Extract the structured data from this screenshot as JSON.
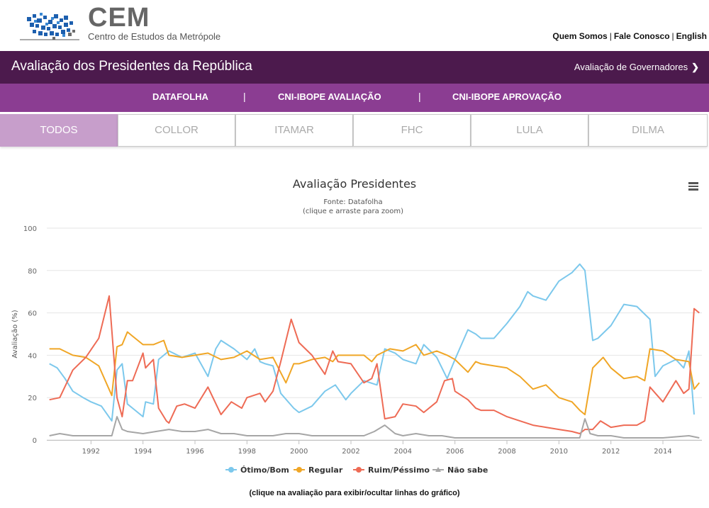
{
  "brand": {
    "name": "CEM",
    "subtitle": "Centro de Estudos da Metrópole"
  },
  "top_links": [
    "Quem Somos",
    "Fale Conosco",
    "English"
  ],
  "titlebar": {
    "title": "Avaliação dos Presidentes da República",
    "governors_link": "Avaliação de Governadores"
  },
  "source_nav": [
    "DATAFOLHA",
    "CNI-IBOPE AVALIAÇÃO",
    "CNI-IBOPE APROVAÇÃO"
  ],
  "tabs": [
    {
      "label": "TODOS",
      "active": true
    },
    {
      "label": "COLLOR",
      "active": false
    },
    {
      "label": "ITAMAR",
      "active": false
    },
    {
      "label": "FHC",
      "active": false
    },
    {
      "label": "LULA",
      "active": false
    },
    {
      "label": "DILMA",
      "active": false
    }
  ],
  "chart_hint": "(clique na avaliação para exibir/ocultar linhas do gráfico)",
  "colors": {
    "header_purple": "#4c1a4d",
    "nav_purple": "#8b3d92",
    "tab_active": "#c79ecb"
  },
  "chart_data": {
    "type": "line",
    "title": "Avaliação Presidentes",
    "subtitle": "Fonte: Datafolha",
    "subtitle2": "(clique e arraste para zoom)",
    "ylabel": "Avaliação (%)",
    "xlabel": "",
    "ylim": [
      0,
      100
    ],
    "yticks": [
      0,
      20,
      40,
      60,
      80,
      100
    ],
    "xlim": [
      1990.3,
      2015.5
    ],
    "xticks": [
      1992,
      1994,
      1996,
      1998,
      2000,
      2002,
      2004,
      2006,
      2008,
      2010,
      2012,
      2014
    ],
    "grid": "horizontal",
    "legend_position": "bottom",
    "series": [
      {
        "name": "Ótimo/Bom",
        "color": "#7cc8ec",
        "points": [
          [
            1990.4,
            36
          ],
          [
            1990.7,
            34
          ],
          [
            1991.0,
            29
          ],
          [
            1991.3,
            23
          ],
          [
            1991.7,
            20
          ],
          [
            1992.0,
            18
          ],
          [
            1992.4,
            16
          ],
          [
            1992.8,
            9
          ],
          [
            1993.0,
            33
          ],
          [
            1993.2,
            36
          ],
          [
            1993.4,
            17
          ],
          [
            1993.6,
            15
          ],
          [
            1994.0,
            11
          ],
          [
            1994.1,
            18
          ],
          [
            1994.4,
            17
          ],
          [
            1994.6,
            38
          ],
          [
            1994.8,
            40
          ],
          [
            1995.0,
            42
          ],
          [
            1995.5,
            39
          ],
          [
            1996.0,
            41
          ],
          [
            1996.5,
            30
          ],
          [
            1996.8,
            43
          ],
          [
            1997.0,
            47
          ],
          [
            1997.5,
            43
          ],
          [
            1998.0,
            38
          ],
          [
            1998.3,
            43
          ],
          [
            1998.5,
            37
          ],
          [
            1998.7,
            36
          ],
          [
            1999.0,
            35
          ],
          [
            1999.3,
            22
          ],
          [
            1999.8,
            15
          ],
          [
            2000.0,
            13
          ],
          [
            2000.5,
            16
          ],
          [
            2001.0,
            23
          ],
          [
            2001.4,
            26
          ],
          [
            2001.8,
            19
          ],
          [
            2002.0,
            22
          ],
          [
            2002.5,
            28
          ],
          [
            2003.0,
            26
          ],
          [
            2003.3,
            43
          ],
          [
            2003.7,
            41
          ],
          [
            2004.0,
            38
          ],
          [
            2004.5,
            36
          ],
          [
            2004.8,
            45
          ],
          [
            2005.3,
            39
          ],
          [
            2005.7,
            29
          ],
          [
            2006.0,
            38
          ],
          [
            2006.5,
            52
          ],
          [
            2006.8,
            50
          ],
          [
            2007.0,
            48
          ],
          [
            2007.5,
            48
          ],
          [
            2008.0,
            55
          ],
          [
            2008.5,
            63
          ],
          [
            2008.8,
            70
          ],
          [
            2009.0,
            68
          ],
          [
            2009.5,
            66
          ],
          [
            2010.0,
            75
          ],
          [
            2010.5,
            79
          ],
          [
            2010.8,
            83
          ],
          [
            2011.0,
            80
          ],
          [
            2011.3,
            47
          ],
          [
            2011.5,
            48
          ],
          [
            2012.0,
            54
          ],
          [
            2012.5,
            64
          ],
          [
            2013.0,
            63
          ],
          [
            2013.5,
            57
          ],
          [
            2013.7,
            30
          ],
          [
            2014.0,
            35
          ],
          [
            2014.5,
            38
          ],
          [
            2014.8,
            34
          ],
          [
            2015.0,
            42
          ],
          [
            2015.2,
            12
          ]
        ]
      },
      {
        "name": "Regular",
        "color": "#f0a626",
        "points": [
          [
            1990.4,
            43
          ],
          [
            1990.8,
            43
          ],
          [
            1991.3,
            40
          ],
          [
            1991.8,
            39
          ],
          [
            1992.3,
            35
          ],
          [
            1992.8,
            21
          ],
          [
            1993.0,
            44
          ],
          [
            1993.2,
            45
          ],
          [
            1993.4,
            51
          ],
          [
            1993.6,
            49
          ],
          [
            1994.0,
            45
          ],
          [
            1994.4,
            45
          ],
          [
            1994.8,
            47
          ],
          [
            1995.0,
            40
          ],
          [
            1995.5,
            39
          ],
          [
            1996.0,
            40
          ],
          [
            1996.5,
            41
          ],
          [
            1997.0,
            38
          ],
          [
            1997.5,
            39
          ],
          [
            1998.0,
            42
          ],
          [
            1998.5,
            38
          ],
          [
            1999.0,
            39
          ],
          [
            1999.5,
            27
          ],
          [
            1999.8,
            36
          ],
          [
            2000.0,
            36
          ],
          [
            2000.5,
            38
          ],
          [
            2001.0,
            39
          ],
          [
            2001.3,
            37
          ],
          [
            2001.5,
            40
          ],
          [
            2002.0,
            40
          ],
          [
            2002.5,
            40
          ],
          [
            2002.8,
            37
          ],
          [
            2003.0,
            40
          ],
          [
            2003.5,
            43
          ],
          [
            2004.0,
            42
          ],
          [
            2004.5,
            45
          ],
          [
            2004.8,
            40
          ],
          [
            2005.3,
            42
          ],
          [
            2005.7,
            40
          ],
          [
            2006.0,
            38
          ],
          [
            2006.5,
            32
          ],
          [
            2006.8,
            37
          ],
          [
            2007.0,
            36
          ],
          [
            2007.5,
            35
          ],
          [
            2008.0,
            34
          ],
          [
            2008.5,
            30
          ],
          [
            2009.0,
            24
          ],
          [
            2009.5,
            26
          ],
          [
            2010.0,
            20
          ],
          [
            2010.5,
            18
          ],
          [
            2010.8,
            14
          ],
          [
            2011.0,
            12
          ],
          [
            2011.3,
            34
          ],
          [
            2011.7,
            39
          ],
          [
            2012.0,
            34
          ],
          [
            2012.5,
            29
          ],
          [
            2013.0,
            30
          ],
          [
            2013.3,
            28
          ],
          [
            2013.5,
            43
          ],
          [
            2014.0,
            42
          ],
          [
            2014.5,
            38
          ],
          [
            2015.0,
            37
          ],
          [
            2015.2,
            24
          ],
          [
            2015.4,
            27
          ]
        ]
      },
      {
        "name": "Ruim/Péssimo",
        "color": "#ee6b55",
        "points": [
          [
            1990.4,
            19
          ],
          [
            1990.8,
            20
          ],
          [
            1991.3,
            33
          ],
          [
            1991.8,
            39
          ],
          [
            1992.3,
            48
          ],
          [
            1992.7,
            68
          ],
          [
            1993.0,
            20
          ],
          [
            1993.2,
            11
          ],
          [
            1993.4,
            28
          ],
          [
            1993.6,
            28
          ],
          [
            1994.0,
            41
          ],
          [
            1994.1,
            34
          ],
          [
            1994.4,
            38
          ],
          [
            1994.6,
            15
          ],
          [
            1994.9,
            9
          ],
          [
            1995.0,
            8
          ],
          [
            1995.3,
            16
          ],
          [
            1995.6,
            17
          ],
          [
            1996.0,
            15
          ],
          [
            1996.5,
            25
          ],
          [
            1997.0,
            12
          ],
          [
            1997.4,
            18
          ],
          [
            1997.8,
            15
          ],
          [
            1998.0,
            20
          ],
          [
            1998.5,
            22
          ],
          [
            1998.7,
            18
          ],
          [
            1999.0,
            23
          ],
          [
            1999.3,
            37
          ],
          [
            1999.7,
            57
          ],
          [
            2000.0,
            46
          ],
          [
            2000.5,
            40
          ],
          [
            2001.0,
            31
          ],
          [
            2001.3,
            42
          ],
          [
            2001.5,
            37
          ],
          [
            2002.0,
            36
          ],
          [
            2002.5,
            27
          ],
          [
            2002.8,
            29
          ],
          [
            2003.0,
            36
          ],
          [
            2003.3,
            10
          ],
          [
            2003.7,
            11
          ],
          [
            2004.0,
            17
          ],
          [
            2004.5,
            16
          ],
          [
            2004.8,
            13
          ],
          [
            2005.3,
            18
          ],
          [
            2005.6,
            28
          ],
          [
            2005.9,
            29
          ],
          [
            2006.0,
            23
          ],
          [
            2006.5,
            19
          ],
          [
            2006.8,
            15
          ],
          [
            2007.0,
            14
          ],
          [
            2007.5,
            14
          ],
          [
            2008.0,
            11
          ],
          [
            2008.5,
            9
          ],
          [
            2009.0,
            7
          ],
          [
            2009.5,
            6
          ],
          [
            2010.0,
            5
          ],
          [
            2010.5,
            4
          ],
          [
            2010.8,
            3
          ],
          [
            2011.0,
            5
          ],
          [
            2011.3,
            5
          ],
          [
            2011.6,
            9
          ],
          [
            2012.0,
            6
          ],
          [
            2012.5,
            7
          ],
          [
            2013.0,
            7
          ],
          [
            2013.3,
            9
          ],
          [
            2013.5,
            25
          ],
          [
            2014.0,
            18
          ],
          [
            2014.5,
            28
          ],
          [
            2014.8,
            22
          ],
          [
            2015.0,
            24
          ],
          [
            2015.2,
            62
          ],
          [
            2015.4,
            60
          ]
        ]
      },
      {
        "name": "Não sabe",
        "color": "#a6a6a6",
        "points": [
          [
            1990.4,
            2
          ],
          [
            1990.8,
            3
          ],
          [
            1991.3,
            2
          ],
          [
            1992.0,
            2
          ],
          [
            1992.8,
            2
          ],
          [
            1993.0,
            11
          ],
          [
            1993.2,
            5
          ],
          [
            1993.4,
            4
          ],
          [
            1994.0,
            3
          ],
          [
            1994.5,
            4
          ],
          [
            1995.0,
            5
          ],
          [
            1995.5,
            4
          ],
          [
            1996.0,
            4
          ],
          [
            1996.5,
            5
          ],
          [
            1997.0,
            3
          ],
          [
            1997.5,
            3
          ],
          [
            1998.0,
            2
          ],
          [
            1998.5,
            2
          ],
          [
            1999.0,
            2
          ],
          [
            1999.5,
            3
          ],
          [
            2000.0,
            3
          ],
          [
            2000.5,
            2
          ],
          [
            2001.0,
            2
          ],
          [
            2001.5,
            2
          ],
          [
            2002.0,
            2
          ],
          [
            2002.5,
            2
          ],
          [
            2002.9,
            4
          ],
          [
            2003.3,
            7
          ],
          [
            2003.7,
            3
          ],
          [
            2004.0,
            2
          ],
          [
            2004.5,
            3
          ],
          [
            2005.0,
            2
          ],
          [
            2005.5,
            2
          ],
          [
            2006.0,
            1
          ],
          [
            2007.0,
            1
          ],
          [
            2008.0,
            1
          ],
          [
            2009.0,
            1
          ],
          [
            2010.0,
            1
          ],
          [
            2010.8,
            1
          ],
          [
            2011.0,
            10
          ],
          [
            2011.2,
            3
          ],
          [
            2011.5,
            2
          ],
          [
            2012.0,
            2
          ],
          [
            2012.5,
            1
          ],
          [
            2013.0,
            1
          ],
          [
            2014.0,
            1
          ],
          [
            2015.0,
            2
          ],
          [
            2015.4,
            1
          ]
        ]
      }
    ]
  }
}
